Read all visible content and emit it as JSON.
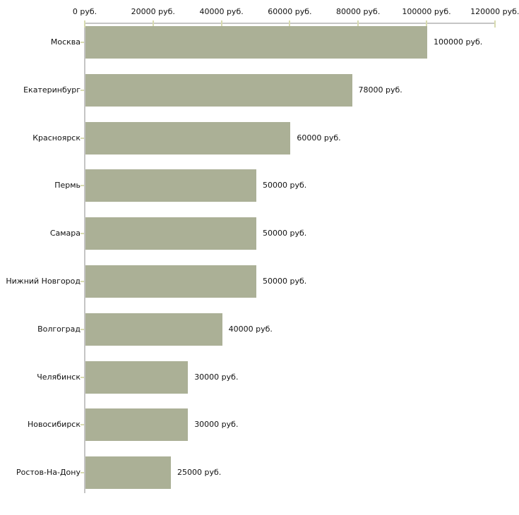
{
  "chart_data": {
    "type": "bar",
    "orientation": "horizontal",
    "title": "",
    "xlabel": "",
    "ylabel": "",
    "categories": [
      "Москва",
      "Екатеринбург",
      "Красноярск",
      "Пермь",
      "Самара",
      "Нижний Новгород",
      "Волгоград",
      "Челябинск",
      "Новосибирск",
      "Ростов-На-Дону"
    ],
    "values": [
      100000,
      78000,
      60000,
      50000,
      50000,
      50000,
      40000,
      30000,
      30000,
      25000
    ],
    "value_labels": [
      "100000 руб.",
      "78000 руб.",
      "60000 руб.",
      "50000 руб.",
      "50000 руб.",
      "50000 руб.",
      "40000 руб.",
      "30000 руб.",
      "30000 руб.",
      "25000 руб."
    ],
    "x_axis": {
      "position": "top",
      "xlim": [
        0,
        120000
      ],
      "ticks": [
        0,
        20000,
        40000,
        60000,
        80000,
        100000,
        120000
      ],
      "tick_labels": [
        "0 руб.",
        "20000 руб.",
        "40000 руб.",
        "60000 руб.",
        "80000 руб.",
        "100000 руб.",
        "120000 руб."
      ]
    },
    "grid": false,
    "legend": false,
    "colors": {
      "bar": "#abb096",
      "axis_line": "#c5c5c5",
      "tick_mark": "#d8dbb0",
      "text": "#111111",
      "background": "#ffffff"
    }
  }
}
